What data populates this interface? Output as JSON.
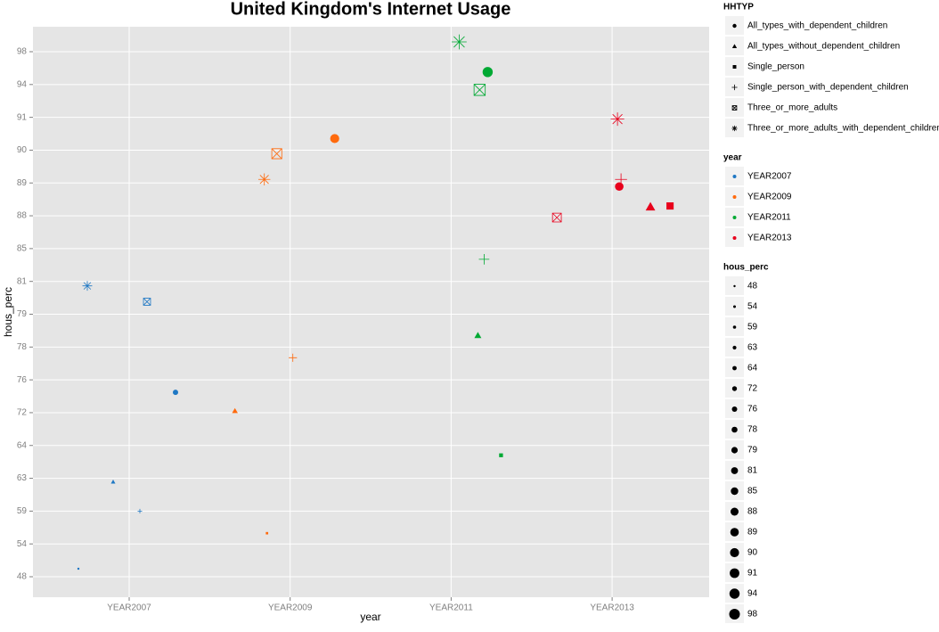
{
  "chart_data": {
    "type": "scatter",
    "title": "United Kingdom's Internet Usage",
    "xlabel": "year",
    "ylabel": "hous_perc",
    "yticks": [
      48,
      54,
      59,
      63,
      64,
      72,
      76,
      78,
      79,
      81,
      85,
      88,
      89,
      90,
      91,
      94,
      98
    ],
    "grid": true,
    "shape_legend": {
      "title": "HHTYP",
      "names": [
        "All_types_with_dependent_children",
        "All_types_without_dependent_children",
        "Single_person",
        "Single_person_with_dependent_children",
        "Three_or_more_adults",
        "Three_or_more_adults_with_dependent_children"
      ]
    },
    "color_legend_title": "year",
    "size_legend_title": "hous_perc",
    "series": [
      {
        "name": "YEAR2007",
        "color": "#1f78c4",
        "values": [
          76,
          63,
          48,
          59,
          79,
          81
        ]
      },
      {
        "name": "YEAR2009",
        "color": "#ff6a0d",
        "values": [
          90,
          72,
          54,
          78,
          90,
          89
        ]
      },
      {
        "name": "YEAR2011",
        "color": "#00a933",
        "values": [
          94,
          78,
          64,
          85,
          94,
          98
        ]
      },
      {
        "name": "YEAR2013",
        "color": "#e8001c",
        "values": [
          89,
          88,
          88,
          89,
          88,
          91
        ]
      }
    ]
  }
}
